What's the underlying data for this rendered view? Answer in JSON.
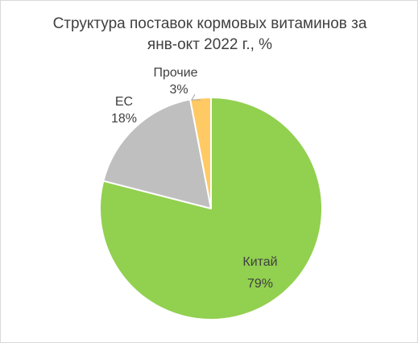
{
  "chart_data": {
    "type": "pie",
    "title_lines": [
      "Структура поставок кормовых витаминов за",
      "янв-окт 2022 г., %"
    ],
    "categories": [
      "Китай",
      "ЕС",
      "Прочие"
    ],
    "values": [
      79,
      18,
      3
    ],
    "value_labels": [
      "79%",
      "18%",
      "3%"
    ],
    "colors": [
      "#92d050",
      "#bfbfbf",
      "#ffc964"
    ],
    "start_angle_deg": 0,
    "direction": "clockwise"
  }
}
